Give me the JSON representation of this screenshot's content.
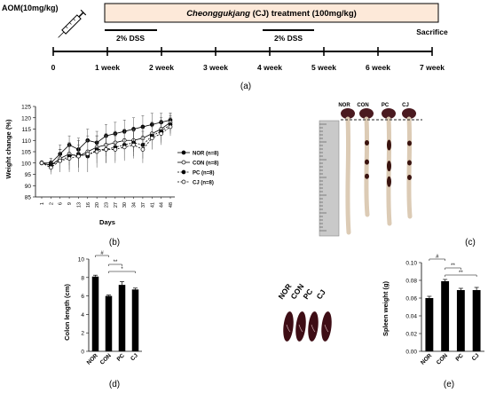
{
  "panel_labels": {
    "a": "(a)",
    "b": "(b)",
    "c": "(c)",
    "d": "(d)",
    "e": "(e)"
  },
  "timeline": {
    "aom_label": "AOM(10mg/kg)",
    "treatment_italic": "Cheonggukjang",
    "treatment_rest": " (CJ) treatment (100mg/kg)",
    "dss_label": "2% DSS",
    "sacrifice_label": "Sacrifice",
    "weeks": [
      "0",
      "1 week",
      "2 week",
      "3 week",
      "4 week",
      "5 week",
      "6 week",
      "7 week"
    ]
  },
  "photo_c": {
    "labels": [
      "NOR",
      "CON",
      "PC",
      "CJ"
    ],
    "tissue_color": "#dccbb5",
    "spleen_color": "#4a1a20"
  },
  "photo_d": {
    "labels": [
      "NOR",
      "CON",
      "PC",
      "CJ"
    ],
    "spleen_color": "#3e0d15"
  },
  "chart_data": [
    {
      "type": "line",
      "ylabel": "Weight change (%)",
      "xlabel": "Days",
      "ylim": [
        85,
        125
      ],
      "yticks": [
        85,
        90,
        95,
        100,
        105,
        110,
        115,
        120,
        125
      ],
      "categories": [
        "1",
        "2",
        "6",
        "9",
        "13",
        "16",
        "20",
        "23",
        "27",
        "30",
        "34",
        "37",
        "41",
        "44",
        "48"
      ],
      "legend_position": "right",
      "series": [
        {
          "name": "NOR",
          "n_label": "(n=8)",
          "marker": "filled-circle",
          "values": [
            100,
            100,
            104,
            108,
            106,
            110,
            109,
            112,
            113,
            114,
            115,
            116,
            117,
            118,
            119
          ],
          "errors": [
            1,
            2,
            4,
            4,
            5,
            5,
            5,
            5,
            5,
            5,
            5,
            5,
            5,
            4,
            3
          ]
        },
        {
          "name": "CON",
          "n_label": "(n=8)",
          "marker": "open-circle",
          "values": [
            100,
            99,
            102,
            104,
            103,
            105,
            107,
            108,
            109,
            110,
            110,
            111,
            113,
            115,
            118
          ],
          "errors": [
            1,
            2,
            4,
            5,
            5,
            5,
            5,
            5,
            5,
            5,
            5,
            5,
            5,
            5,
            4
          ]
        },
        {
          "name": "PC",
          "n_label": "(n=8)",
          "marker": "filled-circle",
          "values": [
            100,
            99,
            101,
            103,
            104,
            103,
            106,
            106,
            107,
            108,
            109,
            108,
            112,
            114,
            117
          ],
          "errors": [
            1,
            3,
            5,
            6,
            6,
            7,
            6,
            6,
            6,
            6,
            6,
            6,
            6,
            5,
            4
          ]
        },
        {
          "name": "CJ",
          "n_label": "(n=8)",
          "marker": "open-circle",
          "values": [
            100,
            98,
            101,
            102,
            103,
            104,
            105,
            106,
            106,
            107,
            108,
            106,
            111,
            113,
            116
          ],
          "errors": [
            1,
            3,
            5,
            6,
            7,
            8,
            7,
            6,
            6,
            6,
            6,
            6,
            5,
            5,
            4
          ]
        }
      ]
    },
    {
      "type": "bar",
      "ylabel": "Colon length (cm)",
      "ylim": [
        0,
        10
      ],
      "yticks": [
        0,
        2,
        4,
        6,
        8,
        10
      ],
      "categories": [
        "NOR",
        "CON",
        "PC",
        "CJ"
      ],
      "values": [
        8.1,
        6.0,
        7.2,
        6.7
      ],
      "errors": [
        0.15,
        0.1,
        0.35,
        0.15
      ],
      "significance": [
        {
          "from": 0,
          "to": 1,
          "label": "#"
        },
        {
          "from": 1,
          "to": 2,
          "label": "**"
        },
        {
          "from": 1,
          "to": 3,
          "label": "*"
        }
      ]
    },
    {
      "type": "bar",
      "ylabel": "Spleen weight (g)",
      "ylim": [
        0,
        0.1
      ],
      "yticks": [
        "0.00",
        "0.02",
        "0.04",
        "0.06",
        "0.08",
        "0.10"
      ],
      "categories": [
        "NOR",
        "CON",
        "PC",
        "CJ"
      ],
      "values": [
        0.06,
        0.079,
        0.069,
        0.069
      ],
      "errors": [
        0.002,
        0.002,
        0.002,
        0.003
      ],
      "significance": [
        {
          "from": 0,
          "to": 1,
          "label": "#"
        },
        {
          "from": 1,
          "to": 2,
          "label": "**"
        },
        {
          "from": 1,
          "to": 3,
          "label": "**"
        }
      ]
    }
  ]
}
